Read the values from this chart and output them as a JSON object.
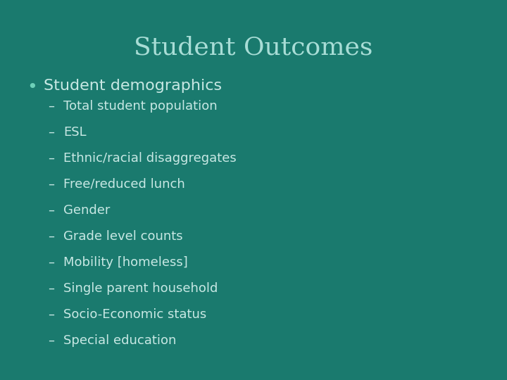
{
  "title": "Student Outcomes",
  "background_color": "#1a7a6e",
  "title_color": "#a8ddd6",
  "text_color": "#c8e8e4",
  "bullet_color": "#6dcfb8",
  "title_fontsize": 26,
  "bullet_fontsize": 16,
  "sub_fontsize": 13,
  "bullet_text": "Student demographics",
  "sub_items": [
    "Total student population",
    "ESL",
    "Ethnic/racial disaggregates",
    "Free/reduced lunch",
    "Gender",
    "Grade level counts",
    "Mobility [homeless]",
    "Single parent household",
    "Socio-Economic status",
    "Special education"
  ]
}
